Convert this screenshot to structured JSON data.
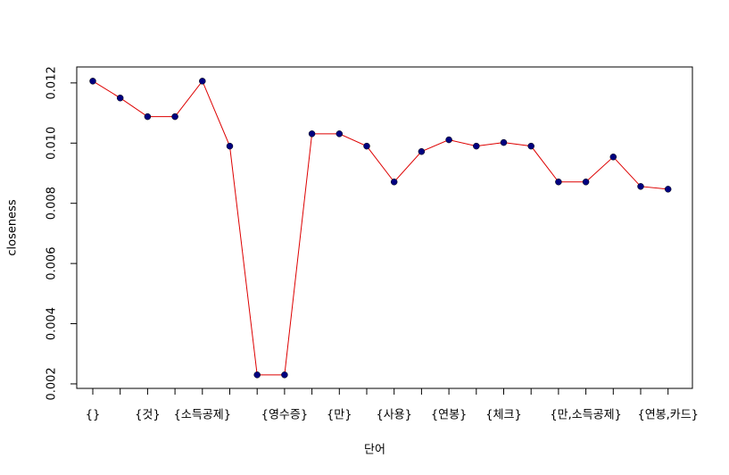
{
  "chart_data": {
    "type": "line",
    "xlabel": "단어",
    "ylabel": "closeness",
    "categories": [
      "{}",
      null,
      "{것}",
      null,
      "{소득공제}",
      null,
      null,
      "{영수증}",
      null,
      "{만}",
      null,
      "{사용}",
      null,
      "{연봉}",
      null,
      "{체크}",
      null,
      null,
      "{만,소득공제}",
      null,
      null,
      "{연봉,카드}"
    ],
    "series": [
      {
        "name": "closeness",
        "color": "#dd0000",
        "marker_color": "#000080",
        "values": [
          0.01206,
          0.0115,
          0.01088,
          0.01088,
          0.01206,
          0.0099,
          0.0023,
          0.0023,
          0.01031,
          0.01031,
          0.0099,
          0.00871,
          0.00972,
          0.01011,
          0.0099,
          0.01002,
          0.0099,
          0.00871,
          0.00871,
          0.00954,
          0.00856,
          0.00847
        ]
      }
    ],
    "ylim": [
      0.00185,
      0.01253
    ],
    "yticks": [
      0.002,
      0.004,
      0.006,
      0.008,
      {
        "value": 0.01,
        "label": "0.010"
      },
      0.012
    ],
    "grid": false
  }
}
